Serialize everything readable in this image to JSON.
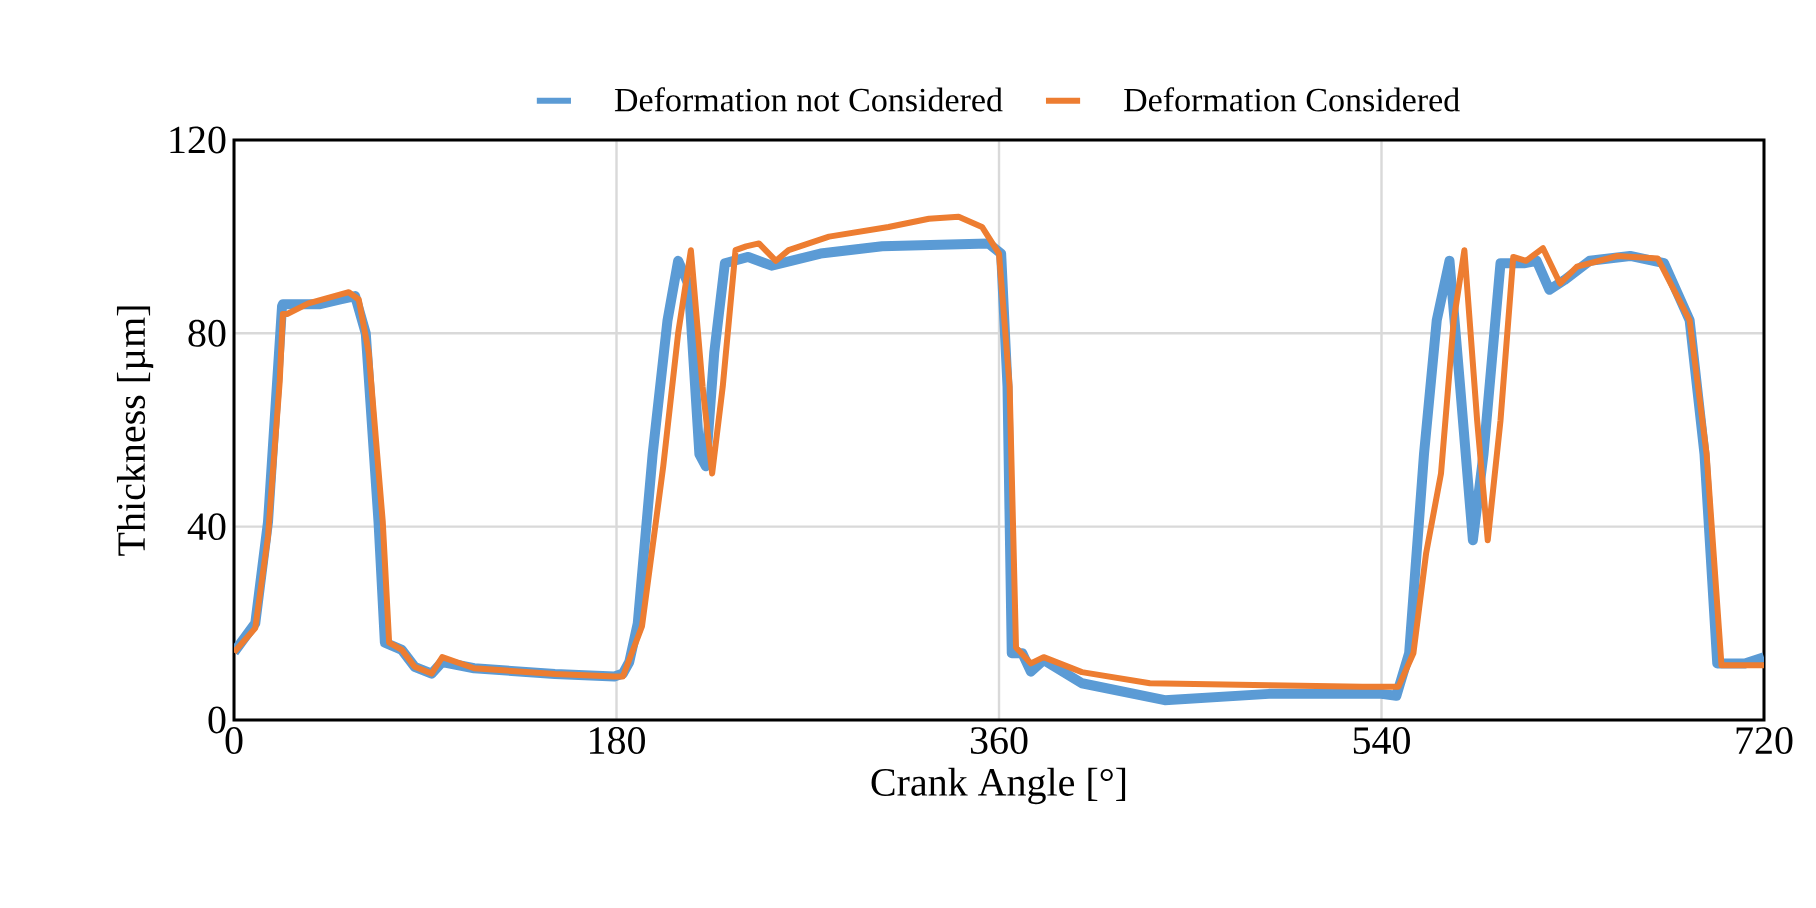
{
  "chart_data": {
    "type": "line",
    "xlabel": "Crank Angle [°]",
    "ylabel": "Thickness [µm]",
    "xlim": [
      0,
      720
    ],
    "xticks": [
      0,
      180,
      360,
      540,
      720
    ],
    "ylim": [
      0,
      120
    ],
    "yticks": [
      0,
      40,
      80,
      120
    ],
    "grid": true,
    "legend": "top",
    "marker": "none",
    "line_style": "solid",
    "series": [
      {
        "name": "Deformation not Considered",
        "color": "#5b9bd5",
        "x": [
          0,
          10,
          16,
          22.6,
          23,
          40,
          50,
          57,
          62,
          68,
          71,
          79,
          85,
          93,
          98,
          113,
          151,
          179,
          183,
          186,
          190,
          197,
          204,
          209,
          214,
          219,
          222,
          226,
          231,
          242,
          253,
          276,
          305,
          355,
          361,
          364,
          366,
          371,
          375,
          381,
          399,
          438,
          487,
          540,
          547,
          553,
          560,
          566,
          572,
          577,
          583,
          588,
          596,
          607,
          613,
          619,
          626,
          638,
          657,
          673,
          685,
          692,
          698,
          711,
          720
        ],
        "values": [
          14,
          20,
          41,
          85.6,
          86,
          86,
          87,
          87.7,
          80,
          41,
          16,
          14.5,
          11,
          9.6,
          12,
          10.7,
          9.5,
          9,
          9.6,
          12,
          20,
          55,
          82.7,
          95,
          90,
          55,
          52.5,
          76,
          94.5,
          95.8,
          94,
          96.5,
          98,
          98.6,
          96.5,
          69,
          13.8,
          13.8,
          10,
          12.4,
          7.6,
          4.1,
          5.4,
          5.4,
          5,
          13.8,
          55,
          82.7,
          95,
          69,
          37.2,
          55,
          94.5,
          94.5,
          95,
          89,
          91,
          95,
          96,
          94.5,
          82.7,
          55,
          11.7,
          11.7,
          13
        ]
      },
      {
        "name": "Deformation Considered",
        "color": "#ed7d31",
        "x": [
          0,
          10,
          16,
          21.5,
          23,
          25,
          35,
          54,
          58.7,
          63.4,
          70,
          73,
          79,
          85,
          93,
          98,
          113,
          151,
          179,
          183,
          192,
          202,
          209,
          215,
          220.5,
          225,
          230,
          236,
          241,
          247,
          255,
          261,
          280,
          308,
          327,
          341,
          352,
          360,
          365,
          368,
          375,
          381,
          399,
          431,
          487,
          531,
          548,
          555,
          561,
          568,
          574,
          579,
          585,
          590,
          596,
          602,
          608,
          616,
          624,
          632,
          651,
          670,
          685,
          693,
          700,
          720
        ],
        "values": [
          14,
          19,
          38,
          70,
          84,
          84,
          86.2,
          88.5,
          87,
          76,
          41,
          16,
          14.5,
          11,
          9.6,
          13,
          10.7,
          9.5,
          9,
          9,
          19.4,
          52.5,
          80,
          97.2,
          69,
          51,
          69,
          97.2,
          98,
          98.6,
          95,
          97.2,
          100,
          102,
          103.7,
          104.1,
          102,
          96.5,
          69,
          15,
          11.7,
          13,
          9.9,
          7.6,
          7.2,
          6.9,
          6.9,
          13.8,
          34.5,
          51,
          82.7,
          97.2,
          62,
          37.2,
          62,
          95.8,
          95,
          97.6,
          90.3,
          93.8,
          96,
          95.5,
          82.7,
          55,
          11.3,
          11.3
        ]
      }
    ]
  }
}
